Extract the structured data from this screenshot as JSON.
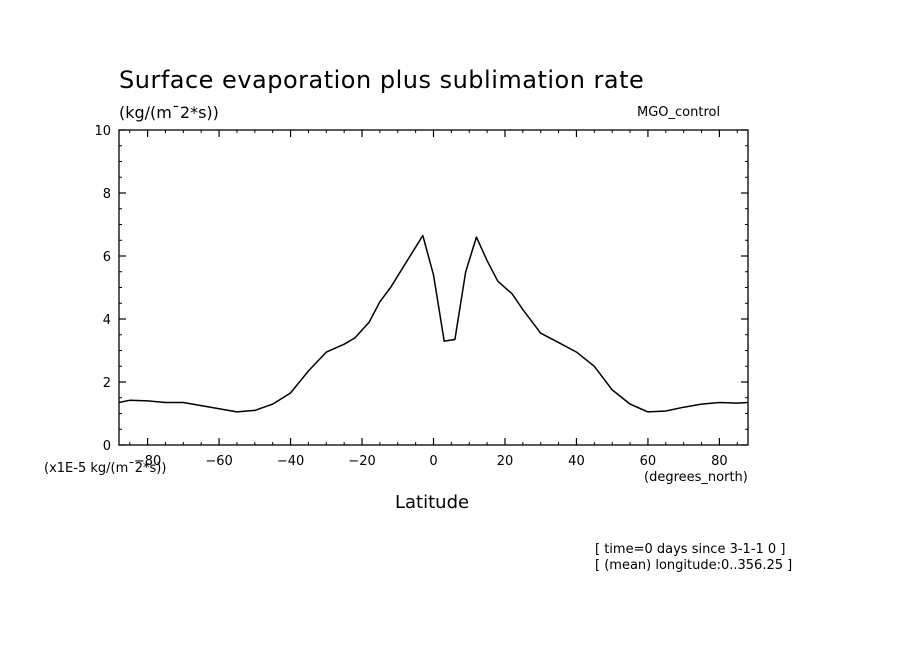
{
  "chart_data": {
    "type": "line",
    "title": "Surface evaporation plus sublimation rate",
    "units_label": "(kg/(m¯2*s))",
    "run_label": "MGO_control",
    "scale_label": "(x1E-5 kg/(m¯2*s))",
    "x_units_label": "(degrees_north)",
    "xlabel": "Latitude",
    "info": [
      "[ time=0 days since 3-1-1 0 ]",
      "[ (mean) longitude:0..356.25 ]"
    ],
    "xlim": [
      -88,
      88
    ],
    "ylim": [
      0,
      10
    ],
    "x_ticks": [
      -80,
      -60,
      -40,
      -20,
      0,
      20,
      40,
      60,
      80
    ],
    "y_ticks": [
      0,
      2,
      4,
      6,
      8,
      10
    ],
    "series": [
      {
        "x": [
          -88,
          -85,
          -80,
          -75,
          -70,
          -65,
          -60,
          -55,
          -50,
          -45,
          -40,
          -35,
          -30,
          -25,
          -22,
          -18,
          -15,
          -12,
          -9,
          -6,
          -3,
          0,
          3,
          6,
          9,
          12,
          15,
          18,
          22,
          25,
          30,
          35,
          40,
          45,
          50,
          55,
          60,
          65,
          70,
          75,
          80,
          85,
          88
        ],
        "y": [
          1.35,
          1.42,
          1.4,
          1.35,
          1.35,
          1.25,
          1.15,
          1.05,
          1.1,
          1.3,
          1.65,
          2.35,
          2.95,
          3.2,
          3.4,
          3.9,
          4.55,
          5.0,
          5.55,
          6.1,
          6.65,
          5.4,
          3.3,
          3.35,
          5.5,
          6.6,
          5.85,
          5.2,
          4.8,
          4.3,
          3.55,
          3.25,
          2.95,
          2.5,
          1.75,
          1.3,
          1.05,
          1.08,
          1.2,
          1.3,
          1.35,
          1.33,
          1.35
        ]
      }
    ]
  }
}
